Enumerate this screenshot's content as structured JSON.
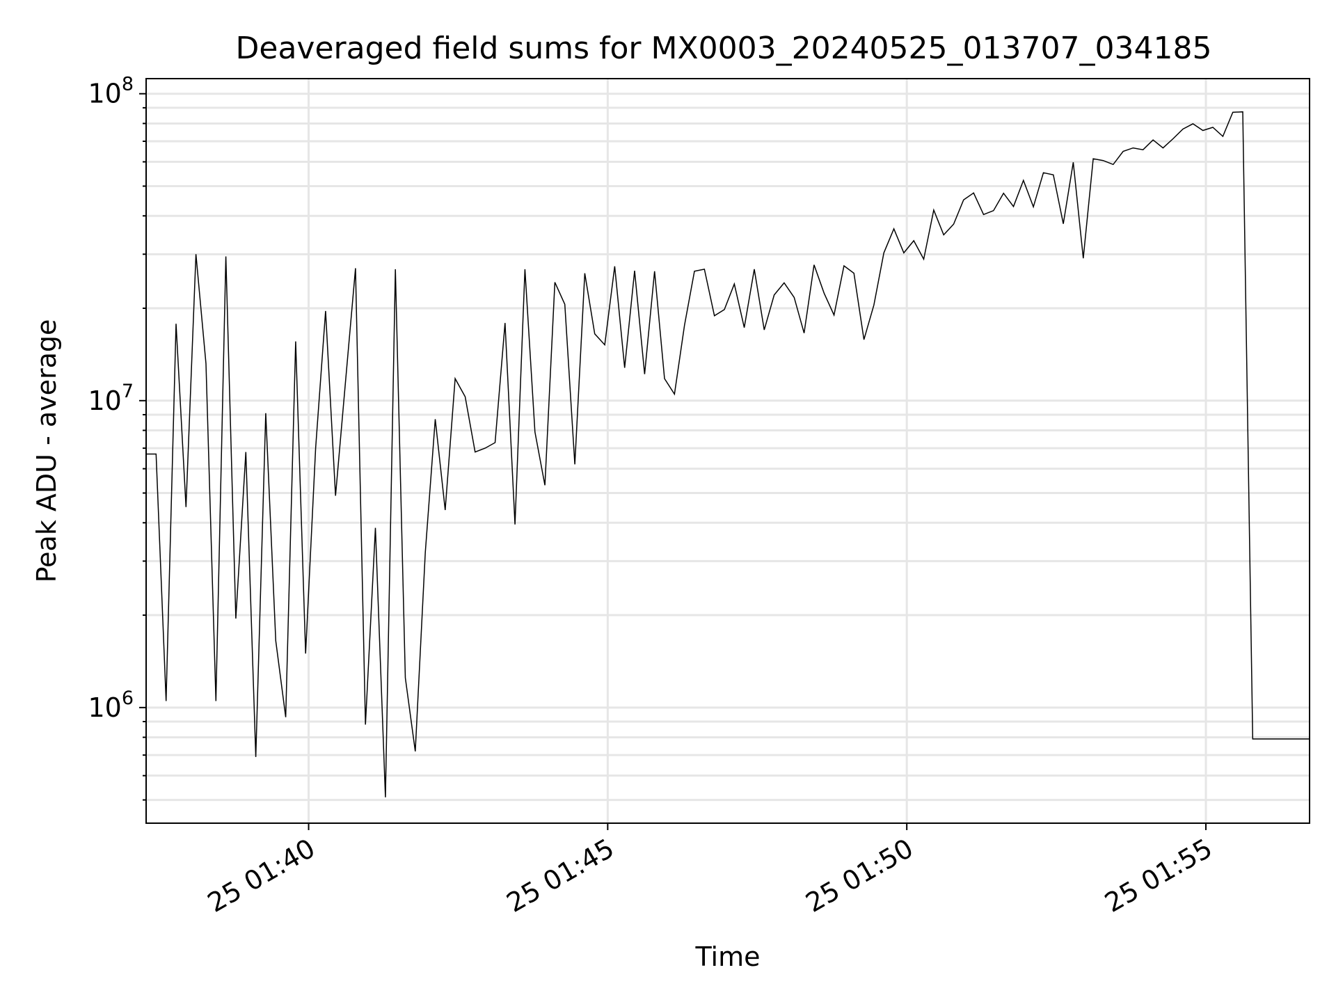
{
  "chart_data": {
    "type": "line",
    "title": "Deaveraged field sums for MX0003_20240525_013707_034185",
    "xlabel": "Time",
    "ylabel": "Peak ADU - average",
    "yscale": "log",
    "ylim": [
      420000,
      112000000
    ],
    "xlim": [
      "2024-05-25 01:37:17",
      "2024-05-25 01:56:44"
    ],
    "grid": true,
    "line_color": "#000000",
    "grid_color": "#e6e6e6",
    "x_ticks": [
      {
        "label": "25 01:40",
        "value": "2024-05-25 01:40:00"
      },
      {
        "label": "25 01:45",
        "value": "2024-05-25 01:45:00"
      },
      {
        "label": "25 01:50",
        "value": "2024-05-25 01:50:00"
      },
      {
        "label": "25 01:55",
        "value": "2024-05-25 01:55:00"
      }
    ],
    "y_ticks": [
      {
        "base": "10",
        "exp": "6",
        "value": 1000000
      },
      {
        "base": "10",
        "exp": "7",
        "value": 10000000
      },
      {
        "base": "10",
        "exp": "8",
        "value": 100000000
      }
    ],
    "series": [
      {
        "points": [
          [
            "2024-05-25 01:37:17",
            6700000
          ],
          [
            "2024-05-25 01:37:27",
            6700000
          ],
          [
            "2024-05-25 01:37:37",
            1050000
          ],
          [
            "2024-05-25 01:37:47",
            17800000
          ],
          [
            "2024-05-25 01:37:57",
            4500000
          ],
          [
            "2024-05-25 01:38:07",
            30000000
          ],
          [
            "2024-05-25 01:38:17",
            13200000
          ],
          [
            "2024-05-25 01:38:27",
            1050000
          ],
          [
            "2024-05-25 01:38:37",
            29500000
          ],
          [
            "2024-05-25 01:38:47",
            1950000
          ],
          [
            "2024-05-25 01:38:57",
            6800000
          ],
          [
            "2024-05-25 01:39:07",
            690000
          ],
          [
            "2024-05-25 01:39:17",
            9100000
          ],
          [
            "2024-05-25 01:39:27",
            1650000
          ],
          [
            "2024-05-25 01:39:37",
            930000
          ],
          [
            "2024-05-25 01:39:47",
            15600000
          ],
          [
            "2024-05-25 01:39:57",
            1500000
          ],
          [
            "2024-05-25 01:40:07",
            7000000
          ],
          [
            "2024-05-25 01:40:17",
            19600000
          ],
          [
            "2024-05-25 01:40:27",
            4900000
          ],
          [
            "2024-05-25 01:40:37",
            11500000
          ],
          [
            "2024-05-25 01:40:47",
            27000000
          ],
          [
            "2024-05-25 01:40:57",
            880000
          ],
          [
            "2024-05-25 01:41:07",
            3850000
          ],
          [
            "2024-05-25 01:41:17",
            510000
          ],
          [
            "2024-05-25 01:41:27",
            26800000
          ],
          [
            "2024-05-25 01:41:37",
            1250000
          ],
          [
            "2024-05-25 01:41:47",
            720000
          ],
          [
            "2024-05-25 01:41:57",
            3200000
          ],
          [
            "2024-05-25 01:42:07",
            8700000
          ],
          [
            "2024-05-25 01:42:17",
            4400000
          ],
          [
            "2024-05-25 01:42:27",
            11800000
          ],
          [
            "2024-05-25 01:42:37",
            10300000
          ],
          [
            "2024-05-25 01:42:47",
            6800000
          ],
          [
            "2024-05-25 01:42:57",
            7000000
          ],
          [
            "2024-05-25 01:43:07",
            7300000
          ],
          [
            "2024-05-25 01:43:17",
            17900000
          ],
          [
            "2024-05-25 01:43:27",
            3950000
          ],
          [
            "2024-05-25 01:43:37",
            26800000
          ],
          [
            "2024-05-25 01:43:47",
            7900000
          ],
          [
            "2024-05-25 01:43:57",
            5300000
          ],
          [
            "2024-05-25 01:44:07",
            24300000
          ],
          [
            "2024-05-25 01:44:17",
            20600000
          ],
          [
            "2024-05-25 01:44:27",
            6200000
          ],
          [
            "2024-05-25 01:44:37",
            26000000
          ],
          [
            "2024-05-25 01:44:47",
            16500000
          ],
          [
            "2024-05-25 01:44:57",
            15200000
          ],
          [
            "2024-05-25 01:45:07",
            27400000
          ],
          [
            "2024-05-25 01:45:17",
            12800000
          ],
          [
            "2024-05-25 01:45:27",
            26500000
          ],
          [
            "2024-05-25 01:45:37",
            12200000
          ],
          [
            "2024-05-25 01:45:47",
            26400000
          ],
          [
            "2024-05-25 01:45:57",
            11800000
          ],
          [
            "2024-05-25 01:46:07",
            10500000
          ],
          [
            "2024-05-25 01:46:17",
            17600000
          ],
          [
            "2024-05-25 01:46:27",
            26400000
          ],
          [
            "2024-05-25 01:46:37",
            26800000
          ],
          [
            "2024-05-25 01:46:47",
            18900000
          ],
          [
            "2024-05-25 01:46:57",
            19800000
          ],
          [
            "2024-05-25 01:47:07",
            24000000
          ],
          [
            "2024-05-25 01:47:17",
            17300000
          ],
          [
            "2024-05-25 01:47:27",
            26800000
          ],
          [
            "2024-05-25 01:47:37",
            17000000
          ],
          [
            "2024-05-25 01:47:47",
            22100000
          ],
          [
            "2024-05-25 01:47:57",
            24200000
          ],
          [
            "2024-05-25 01:48:07",
            21700000
          ],
          [
            "2024-05-25 01:48:17",
            16600000
          ],
          [
            "2024-05-25 01:48:27",
            27700000
          ],
          [
            "2024-05-25 01:48:37",
            22400000
          ],
          [
            "2024-05-25 01:48:47",
            19000000
          ],
          [
            "2024-05-25 01:48:57",
            27500000
          ],
          [
            "2024-05-25 01:49:07",
            26000000
          ],
          [
            "2024-05-25 01:49:17",
            15800000
          ],
          [
            "2024-05-25 01:49:27",
            20500000
          ],
          [
            "2024-05-25 01:49:37",
            30300000
          ],
          [
            "2024-05-25 01:49:47",
            36300000
          ],
          [
            "2024-05-25 01:49:57",
            30300000
          ],
          [
            "2024-05-25 01:50:07",
            33200000
          ],
          [
            "2024-05-25 01:50:17",
            28900000
          ],
          [
            "2024-05-25 01:50:27",
            41800000
          ],
          [
            "2024-05-25 01:50:37",
            34700000
          ],
          [
            "2024-05-25 01:50:47",
            37600000
          ],
          [
            "2024-05-25 01:50:57",
            45100000
          ],
          [
            "2024-05-25 01:51:07",
            47500000
          ],
          [
            "2024-05-25 01:51:17",
            40400000
          ],
          [
            "2024-05-25 01:51:27",
            41600000
          ],
          [
            "2024-05-25 01:51:37",
            47400000
          ],
          [
            "2024-05-25 01:51:47",
            42900000
          ],
          [
            "2024-05-25 01:51:57",
            52200000
          ],
          [
            "2024-05-25 01:52:07",
            42800000
          ],
          [
            "2024-05-25 01:52:17",
            55300000
          ],
          [
            "2024-05-25 01:52:27",
            54400000
          ],
          [
            "2024-05-25 01:52:37",
            37700000
          ],
          [
            "2024-05-25 01:52:47",
            59800000
          ],
          [
            "2024-05-25 01:52:57",
            29100000
          ],
          [
            "2024-05-25 01:53:07",
            61400000
          ],
          [
            "2024-05-25 01:53:17",
            60600000
          ],
          [
            "2024-05-25 01:53:27",
            58800000
          ],
          [
            "2024-05-25 01:53:37",
            64900000
          ],
          [
            "2024-05-25 01:53:47",
            66600000
          ],
          [
            "2024-05-25 01:53:57",
            65700000
          ],
          [
            "2024-05-25 01:54:07",
            70700000
          ],
          [
            "2024-05-25 01:54:17",
            66600000
          ],
          [
            "2024-05-25 01:54:27",
            71300000
          ],
          [
            "2024-05-25 01:54:37",
            76700000
          ],
          [
            "2024-05-25 01:54:47",
            79800000
          ],
          [
            "2024-05-25 01:54:57",
            75900000
          ],
          [
            "2024-05-25 01:55:07",
            77700000
          ],
          [
            "2024-05-25 01:55:17",
            72600000
          ],
          [
            "2024-05-25 01:55:27",
            87000000
          ],
          [
            "2024-05-25 01:55:37",
            87300000
          ],
          [
            "2024-05-25 01:55:47",
            790000
          ],
          [
            "2024-05-25 01:55:57",
            790000
          ],
          [
            "2024-05-25 01:56:44",
            790000
          ]
        ]
      }
    ]
  }
}
